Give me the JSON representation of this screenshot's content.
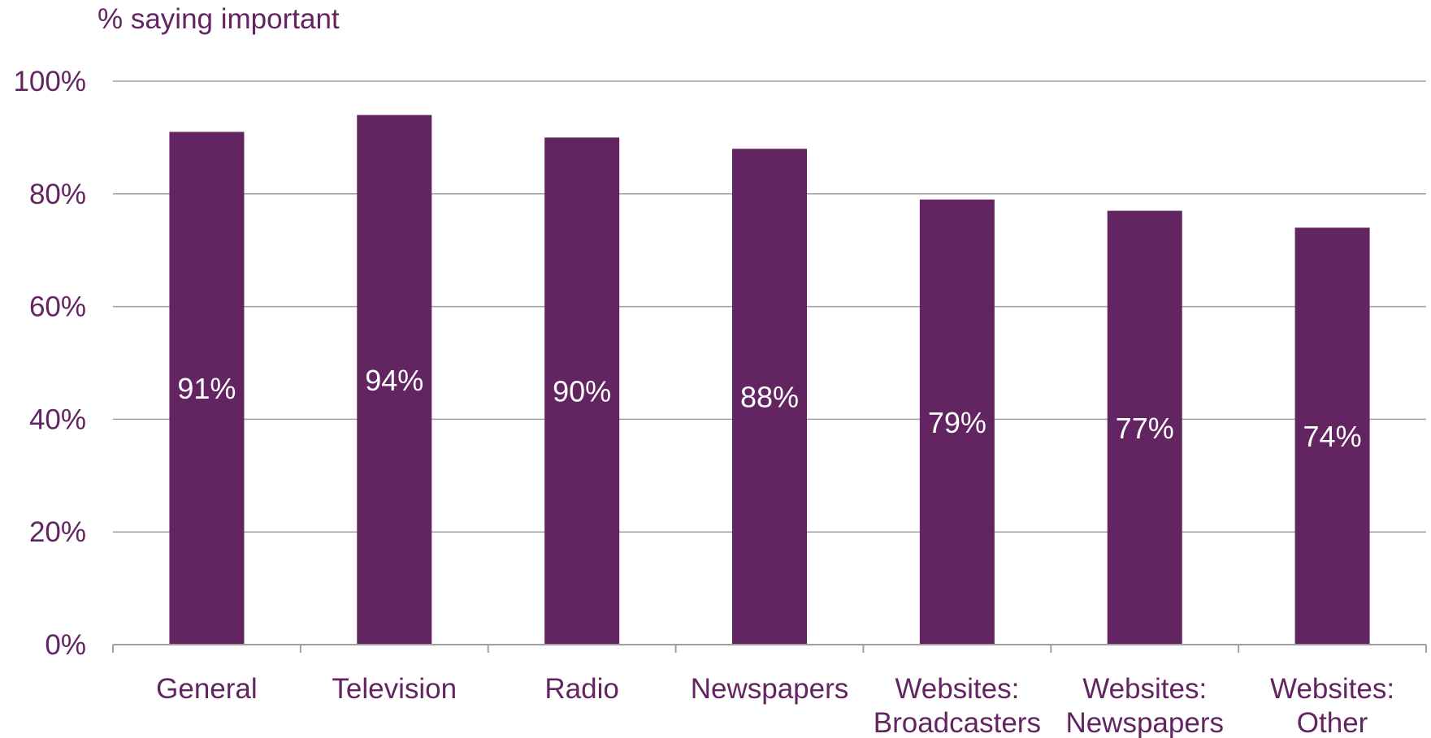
{
  "colors": {
    "bar": "#632462",
    "text": "#632462",
    "grid": "#a0a0a0",
    "label": "#ffffff"
  },
  "chart_data": {
    "type": "bar",
    "title": "",
    "xlabel": "",
    "ylabel": "% saying important",
    "ylim": [
      0,
      100
    ],
    "yticks": [
      {
        "value": 0,
        "label": "0%"
      },
      {
        "value": 20,
        "label": "20%"
      },
      {
        "value": 40,
        "label": "40%"
      },
      {
        "value": 60,
        "label": "60%"
      },
      {
        "value": 80,
        "label": "80%"
      },
      {
        "value": 100,
        "label": "100%"
      }
    ],
    "grid": true,
    "legend": "none",
    "categories": [
      [
        "General"
      ],
      [
        "Television"
      ],
      [
        "Radio"
      ],
      [
        "Newspapers"
      ],
      [
        "Websites:",
        "Broadcasters"
      ],
      [
        "Websites:",
        "Newspapers"
      ],
      [
        "Websites:",
        "Other"
      ]
    ],
    "values": [
      91,
      94,
      90,
      88,
      79,
      77,
      74
    ],
    "data_labels": [
      "91%",
      "94%",
      "90%",
      "88%",
      "79%",
      "77%",
      "74%"
    ]
  }
}
